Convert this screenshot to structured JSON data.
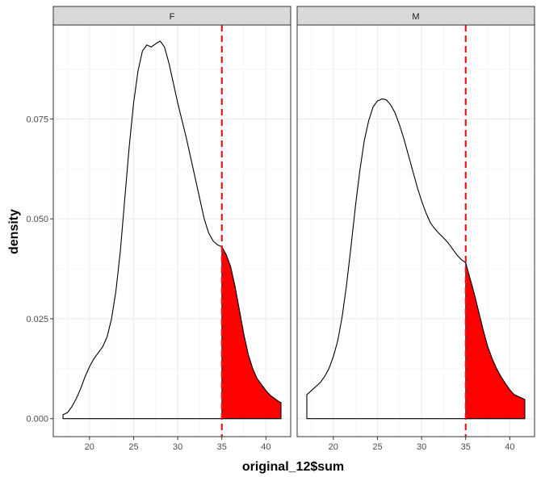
{
  "chart_data": {
    "type": "area",
    "xlabel": "original_12$sum",
    "ylabel": "density",
    "xlim": [
      15.9,
      42.8
    ],
    "ylim": [
      -0.0045,
      0.0985
    ],
    "x_ticks": [
      20,
      25,
      30,
      35,
      40
    ],
    "x_tick_labels": [
      "20",
      "25",
      "30",
      "35",
      "40"
    ],
    "y_ticks": [
      0,
      0.025,
      0.05,
      0.075
    ],
    "y_tick_labels": [
      "0.000",
      "0.025",
      "0.050",
      "0.075"
    ],
    "grid": true,
    "threshold": 35,
    "colors": {
      "fill": "#ff0000",
      "threshold_line": "#e31a1c",
      "curve": "#000000",
      "strip_bg": "#d9d9d9",
      "grid": "#ebebeb"
    },
    "facets": [
      {
        "label": "F",
        "x": [
          17.0,
          17.5,
          18.0,
          18.5,
          19.0,
          19.5,
          20.0,
          20.5,
          21.0,
          21.5,
          22.0,
          22.5,
          23.0,
          23.5,
          24.0,
          24.5,
          25.0,
          25.5,
          26.0,
          26.5,
          27.0,
          27.5,
          28.0,
          28.5,
          29.0,
          29.5,
          30.0,
          30.5,
          31.0,
          31.5,
          32.0,
          32.5,
          33.0,
          33.5,
          34.0,
          34.5,
          35.0,
          35.5,
          36.0,
          36.5,
          37.0,
          37.5,
          38.0,
          38.5,
          39.0,
          39.5,
          40.0,
          40.5,
          41.0,
          41.5,
          41.7
        ],
        "y": [
          0.001,
          0.0015,
          0.003,
          0.005,
          0.0075,
          0.0105,
          0.013,
          0.015,
          0.0165,
          0.018,
          0.0205,
          0.025,
          0.032,
          0.042,
          0.055,
          0.068,
          0.079,
          0.087,
          0.092,
          0.0935,
          0.093,
          0.0938,
          0.0945,
          0.093,
          0.089,
          0.084,
          0.079,
          0.0745,
          0.07,
          0.065,
          0.06,
          0.055,
          0.05,
          0.0465,
          0.0445,
          0.0435,
          0.043,
          0.041,
          0.038,
          0.033,
          0.027,
          0.021,
          0.016,
          0.0125,
          0.01,
          0.0085,
          0.007,
          0.0058,
          0.005,
          0.0042,
          0.004
        ]
      },
      {
        "label": "M",
        "x": [
          17.0,
          17.5,
          18.0,
          18.5,
          19.0,
          19.5,
          20.0,
          20.5,
          21.0,
          21.5,
          22.0,
          22.5,
          23.0,
          23.5,
          24.0,
          24.5,
          25.0,
          25.5,
          26.0,
          26.5,
          27.0,
          27.5,
          28.0,
          28.5,
          29.0,
          29.5,
          30.0,
          30.5,
          31.0,
          31.5,
          32.0,
          32.5,
          33.0,
          33.5,
          34.0,
          34.5,
          35.0,
          35.5,
          36.0,
          36.5,
          37.0,
          37.5,
          38.0,
          38.5,
          39.0,
          39.5,
          40.0,
          40.5,
          41.0,
          41.5,
          41.7
        ],
        "y": [
          0.006,
          0.007,
          0.008,
          0.009,
          0.0105,
          0.0125,
          0.0155,
          0.0195,
          0.0255,
          0.0335,
          0.043,
          0.053,
          0.062,
          0.0695,
          0.0745,
          0.078,
          0.0795,
          0.08,
          0.0798,
          0.0785,
          0.0765,
          0.0735,
          0.07,
          0.066,
          0.062,
          0.058,
          0.0545,
          0.0515,
          0.049,
          0.0475,
          0.0463,
          0.0452,
          0.044,
          0.0425,
          0.041,
          0.0398,
          0.039,
          0.035,
          0.031,
          0.0265,
          0.022,
          0.018,
          0.015,
          0.0125,
          0.0105,
          0.0088,
          0.0072,
          0.006,
          0.0055,
          0.005,
          0.0048
        ]
      }
    ]
  }
}
